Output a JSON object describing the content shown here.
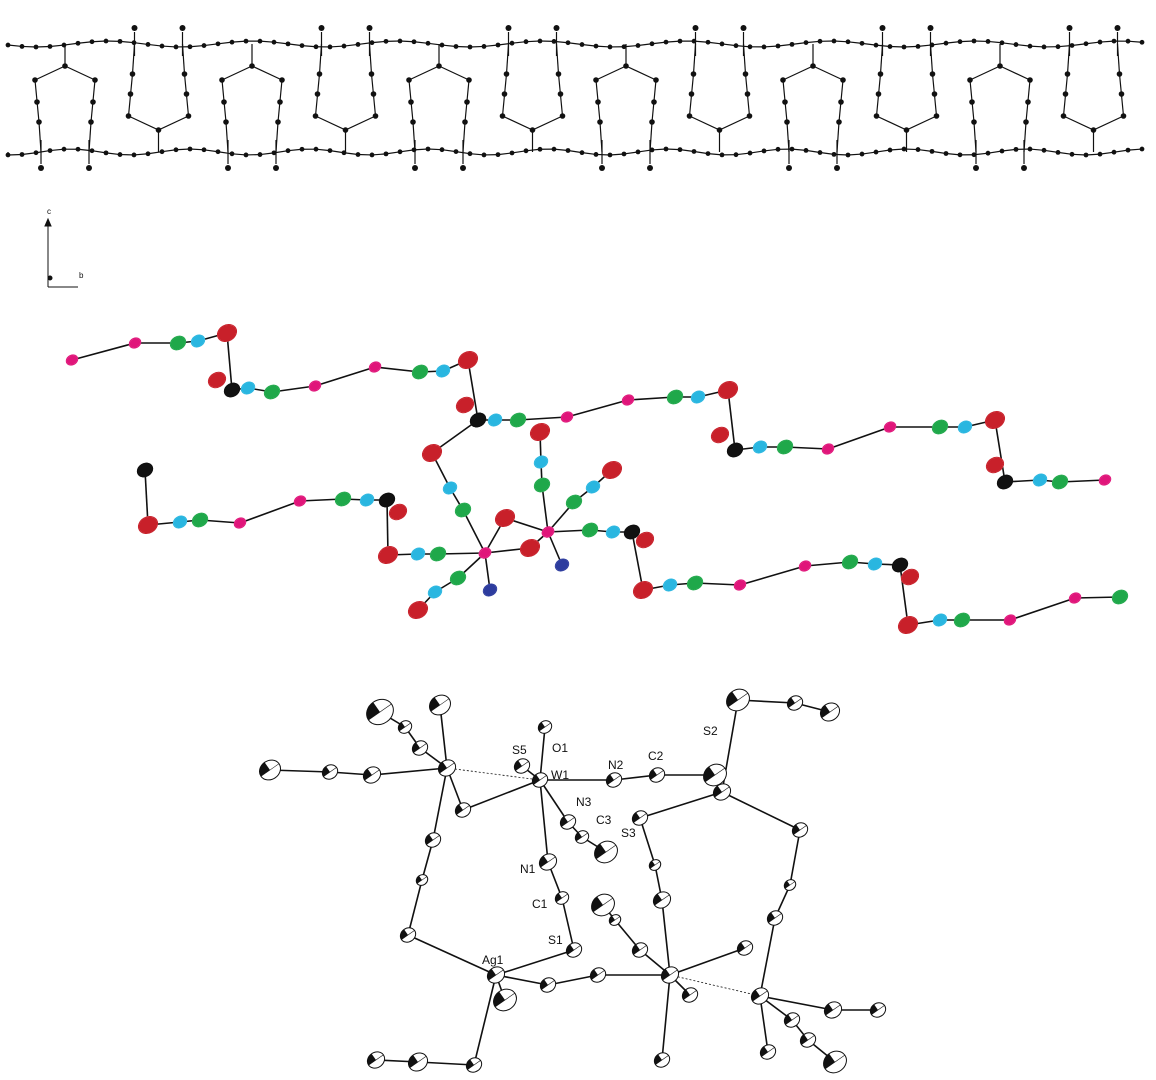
{
  "axis_labels": {
    "vertical": "c",
    "horizontal": "b"
  },
  "atom_labels": [
    "S5",
    "O1",
    "W1",
    "N2",
    "C2",
    "S2",
    "N3",
    "C3",
    "S3",
    "N1",
    "C1",
    "S1",
    "Ag1"
  ]
}
